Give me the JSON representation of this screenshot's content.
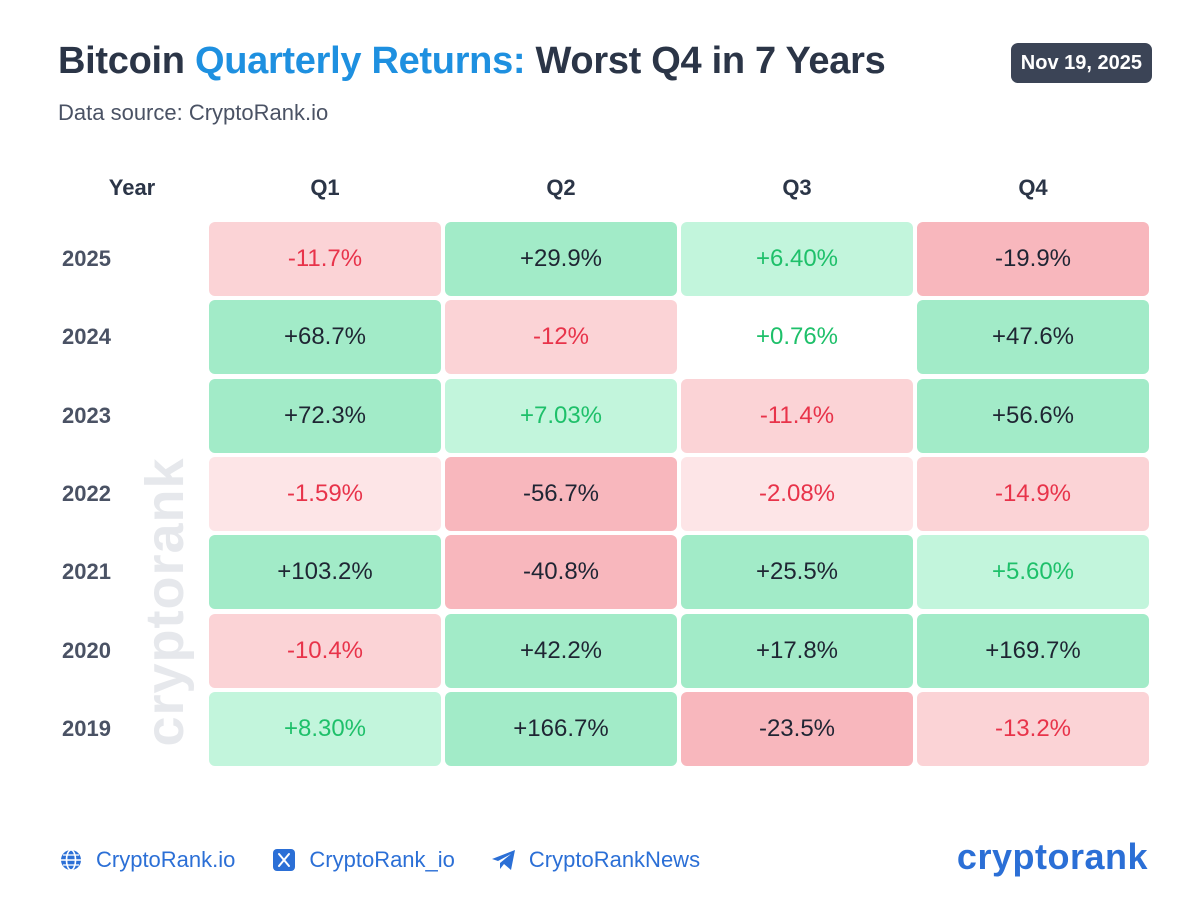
{
  "header": {
    "title_part1": "Bitcoin ",
    "title_highlight": "Quarterly Returns:",
    "title_part2": " Worst Q4 in 7 Years",
    "subtitle": "Data source: CryptoRank.io",
    "date": "Nov 19, 2025"
  },
  "watermark": "cryptorank",
  "colors": {
    "accent_blue": "#1e90e0",
    "positive_text": "#1ec06a",
    "negative_text": "#e8334a",
    "strong_text": "#1f2533",
    "green_strong": "#a2ebc8",
    "green_light": "#c2f5dc",
    "red_strong": "#f8b7bd",
    "red_light": "#fbd3d6",
    "red_faint": "#fde5e7"
  },
  "chart_data": {
    "type": "heatmap",
    "row_header": "Year",
    "columns": [
      "Q1",
      "Q2",
      "Q3",
      "Q4"
    ],
    "rows": [
      {
        "year": "2025",
        "labels": [
          "-11.7%",
          "+29.9%",
          "+6.40%",
          "-19.9%"
        ],
        "values": [
          -11.7,
          29.9,
          6.4,
          -19.9
        ]
      },
      {
        "year": "2024",
        "labels": [
          "+68.7%",
          "-12%",
          "+0.76%",
          "+47.6%"
        ],
        "values": [
          68.7,
          -12,
          0.76,
          47.6
        ]
      },
      {
        "year": "2023",
        "labels": [
          "+72.3%",
          "+7.03%",
          "-11.4%",
          "+56.6%"
        ],
        "values": [
          72.3,
          7.03,
          -11.4,
          56.6
        ]
      },
      {
        "year": "2022",
        "labels": [
          "-1.59%",
          "-56.7%",
          "-2.08%",
          "-14.9%"
        ],
        "values": [
          -1.59,
          -56.7,
          -2.08,
          -14.9
        ]
      },
      {
        "year": "2021",
        "labels": [
          "+103.2%",
          "-40.8%",
          "+25.5%",
          "+5.60%"
        ],
        "values": [
          103.2,
          -40.8,
          25.5,
          5.6
        ]
      },
      {
        "year": "2020",
        "labels": [
          "-10.4%",
          "+42.2%",
          "+17.8%",
          "+169.7%"
        ],
        "values": [
          -10.4,
          42.2,
          17.8,
          169.7
        ]
      },
      {
        "year": "2019",
        "labels": [
          "+8.30%",
          "+166.7%",
          "-23.5%",
          "-13.2%"
        ],
        "values": [
          8.3,
          166.7,
          -23.5,
          -13.2
        ]
      }
    ]
  },
  "footer": {
    "links": [
      {
        "label": "CryptoRank.io",
        "icon": "globe-icon"
      },
      {
        "label": "CryptoRank_io",
        "icon": "x-logo-icon"
      },
      {
        "label": "CryptoRankNews",
        "icon": "telegram-icon"
      }
    ],
    "brand": "cryptorank"
  }
}
